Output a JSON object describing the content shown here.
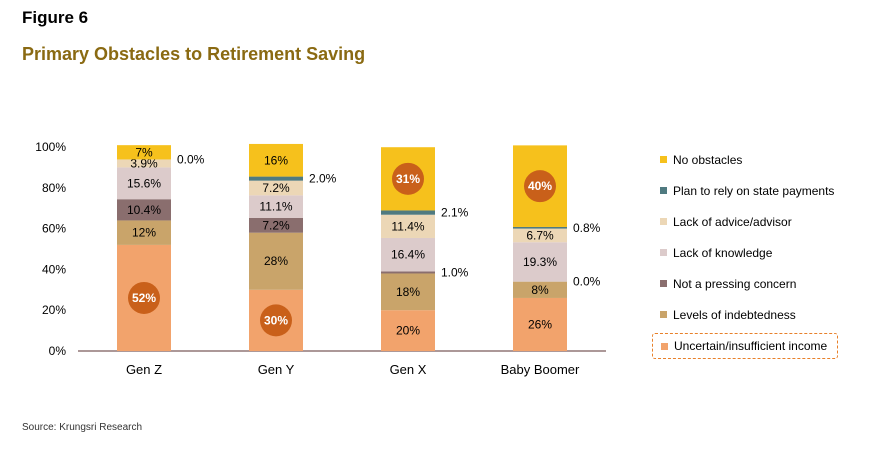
{
  "figure_label": "Figure 6",
  "title": "Primary Obstacles to Retirement Saving",
  "source": "Source: Krungsri Research",
  "chart_data": {
    "type": "bar",
    "stacked": true,
    "categories": [
      "Gen Z",
      "Gen Y",
      "Gen X",
      "Baby Boomer"
    ],
    "yticks": [
      "0%",
      "20%",
      "40%",
      "60%",
      "80%",
      "100%"
    ],
    "ylim": [
      0,
      100
    ],
    "legend_position": "right",
    "series": [
      {
        "name": "Uncertain/insufficient income",
        "color": "#f2a36c",
        "values": [
          52,
          30,
          20,
          26
        ],
        "labels": [
          "52%",
          "30%",
          "20%",
          "26%"
        ],
        "circled": [
          true,
          true,
          false,
          false
        ]
      },
      {
        "name": "Levels of indebtedness",
        "color": "#c9a46a",
        "values": [
          12,
          28,
          18,
          8
        ],
        "labels": [
          "12%",
          "28%",
          "18%",
          "8%"
        ]
      },
      {
        "name": "Not a pressing concern",
        "color": "#8a6e6e",
        "values": [
          10.4,
          7.2,
          1.0,
          0.0
        ],
        "labels": [
          "10.4%",
          "7.2%",
          "1.0%",
          "0.0%"
        ],
        "outside": [
          false,
          false,
          true,
          true
        ]
      },
      {
        "name": "Lack of knowledge",
        "color": "#dccbcb",
        "values": [
          15.6,
          11.1,
          16.4,
          19.3
        ],
        "labels": [
          "15.6%",
          "11.1%",
          "16.4%",
          "19.3%"
        ]
      },
      {
        "name": "Lack of advice/advisor",
        "color": "#ecd7b6",
        "values": [
          3.9,
          7.2,
          11.4,
          6.7
        ],
        "labels": [
          "3.9%",
          "7.2%",
          "11.4%",
          "6.7%"
        ]
      },
      {
        "name": "Plan to rely on state payments",
        "color": "#4f7a80",
        "values": [
          0.0,
          2.0,
          2.1,
          0.8
        ],
        "labels": [
          "0.0%",
          "2.0%",
          "2.1%",
          "0.8%"
        ],
        "outside": [
          true,
          true,
          true,
          true
        ]
      },
      {
        "name": "No obstacles",
        "color": "#f6c11c",
        "values": [
          7,
          16,
          31,
          40
        ],
        "labels": [
          "7%",
          "16%",
          "31%",
          "40%"
        ],
        "circled": [
          false,
          false,
          true,
          true
        ]
      }
    ],
    "legend_order": [
      "No obstacles",
      "Plan to rely on state payments",
      "Lack of advice/advisor",
      "Lack of knowledge",
      "Not a pressing concern",
      "Levels of indebtedness",
      "Uncertain/insufficient income"
    ],
    "highlighted_legend": "Uncertain/insufficient income",
    "circle_color": "#c9601a"
  }
}
